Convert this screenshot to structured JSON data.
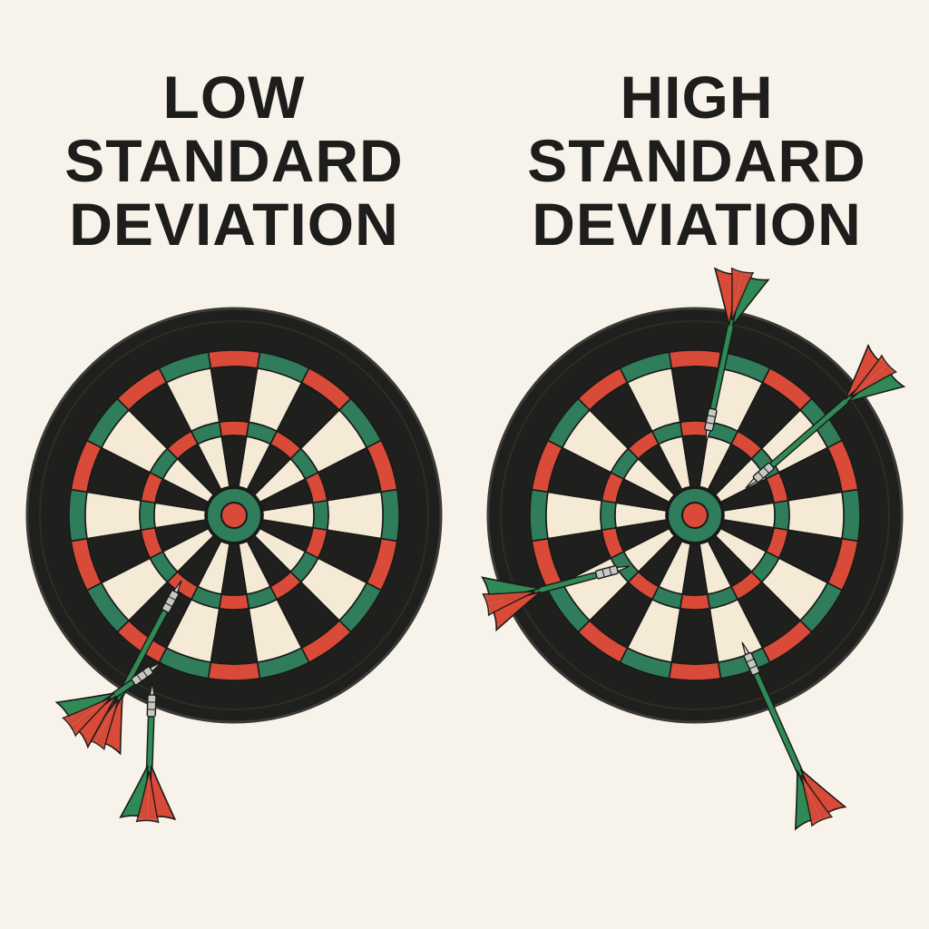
{
  "panels": [
    {
      "title_lines": [
        "LOW",
        "STANDARD",
        "DEVIATION"
      ],
      "darts": [
        {
          "color": "#2f8a56",
          "fins": "#d94a38"
        },
        {
          "color": "#2f8a56",
          "fins": "#d94a38"
        },
        {
          "color": "#2f8a56",
          "fins": "#d94a38"
        }
      ]
    },
    {
      "title_lines": [
        "HIGH",
        "STANDARD",
        "DEVIATION"
      ],
      "darts": [
        {
          "color": "#2f8a56",
          "fins": "#d94a38"
        },
        {
          "color": "#2f8a56",
          "fins": "#d94a38"
        },
        {
          "color": "#2f8a56",
          "fins": "#d94a38"
        },
        {
          "color": "#2f8a56",
          "fins": "#d94a38"
        }
      ]
    }
  ],
  "colors": {
    "background": "#f8f3ea",
    "board_outer": "#1f1f1d",
    "segment_dark": "#1f1f1d",
    "segment_light": "#f4ead6",
    "ring_red": "#d94a38",
    "ring_green": "#2f7d5b",
    "text": "#1d1d1b"
  }
}
